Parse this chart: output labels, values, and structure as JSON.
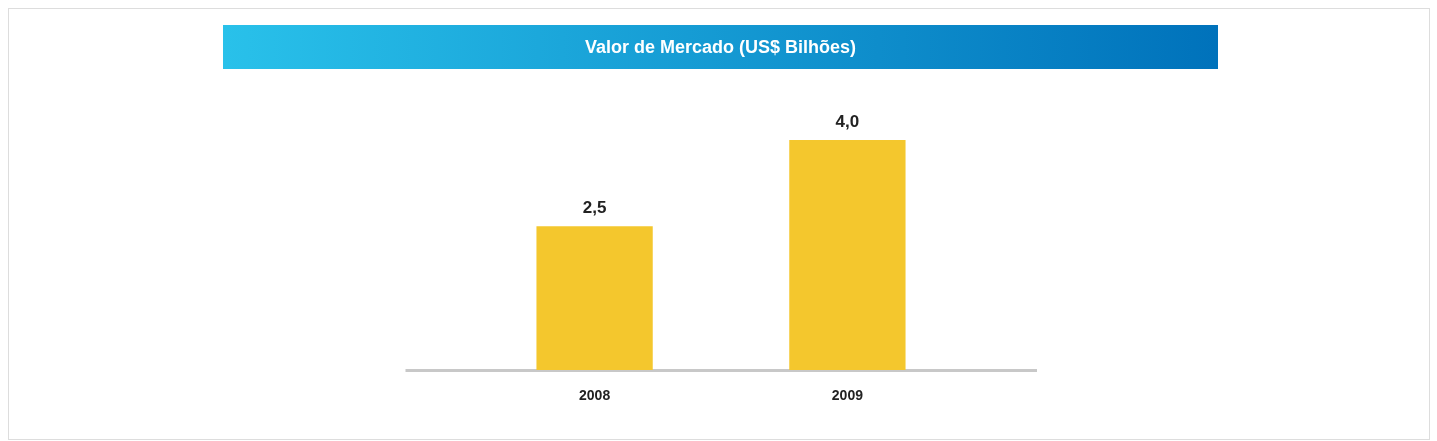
{
  "chart_data": {
    "type": "bar",
    "title": "Valor de Mercado (US$ Bilhões)",
    "categories": [
      "2008",
      "2009"
    ],
    "values": [
      2.5,
      4.0
    ],
    "color": "#f4c72d",
    "value_labels": [
      "2,5",
      "4,0"
    ]
  }
}
